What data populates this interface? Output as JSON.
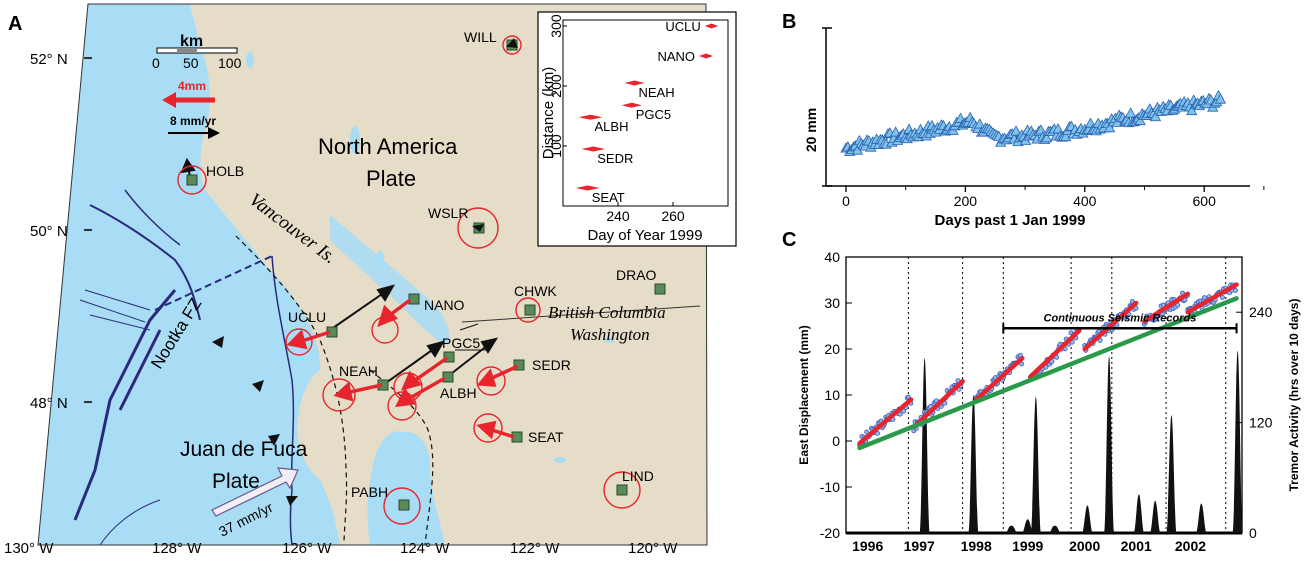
{
  "panels": {
    "a": "A",
    "b": "B",
    "c": "C"
  },
  "colors": {
    "ocean": "#a9dcf5",
    "land": "#e6ddc8",
    "vector": "#e8242c",
    "site": "#5a8a5a",
    "gps": "#3c6fc4",
    "trend": "#2a9a4a"
  },
  "map": {
    "lat_labels": [
      "52° N",
      "50° N",
      "48° N"
    ],
    "lon_labels": [
      "130° W",
      "128° W",
      "126° W",
      "124° W",
      "122° W",
      "120° W"
    ],
    "scale": {
      "title": "km",
      "ticks": [
        "0",
        "50",
        "100"
      ]
    },
    "legend_red": "4mm",
    "legend_black": "8 mm/yr",
    "regions": {
      "na1": "North America",
      "na2": "Plate",
      "jdf1": "Juan de Fuca",
      "jdf2": "Plate",
      "vancouver": "Vancouver Is.",
      "nootka": "Nootka FZ",
      "bc": "British Columbia",
      "wa": "Washington"
    },
    "plate_rate": "37 mm/yr",
    "stations": {
      "will": "WILL",
      "holb": "HOLB",
      "wslr": "WSLR",
      "drao": "DRAO",
      "chwk": "CHWK",
      "nano": "NANO",
      "uclu": "UCLU",
      "pgc5": "PGC5",
      "neah": "NEAH",
      "sedr": "SEDR",
      "albh": "ALBH",
      "seat": "SEAT",
      "pabh": "PABH",
      "lind": "LIND"
    }
  },
  "chart_data": [
    {
      "panel": "A inset",
      "type": "scatter",
      "xlabel": "Day of Year 1999",
      "ylabel": "Distance (km)",
      "xlim": [
        220,
        280
      ],
      "ylim": [
        0,
        310
      ],
      "xticks": [
        240,
        260
      ],
      "yticks": [
        100,
        200,
        300
      ],
      "series": [
        {
          "name": "UCLU",
          "x": 274,
          "y": 300
        },
        {
          "name": "NANO",
          "x": 272,
          "y": 250
        },
        {
          "name": "NEAH",
          "x": 246,
          "y": 205
        },
        {
          "name": "PGC5",
          "x": 245,
          "y": 168
        },
        {
          "name": "ALBH",
          "x": 230,
          "y": 148
        },
        {
          "name": "SEDR",
          "x": 231,
          "y": 95
        },
        {
          "name": "SEAT",
          "x": 229,
          "y": 30
        }
      ]
    },
    {
      "panel": "B",
      "type": "scatter",
      "xlabel": "Days past 1 Jan 1999",
      "ylabel": "20 mm",
      "xticks": [
        0,
        200,
        400,
        600
      ],
      "xlim": [
        -20,
        720
      ],
      "scale_bar_mm": 20,
      "trend_mm": [
        [
          0,
          0
        ],
        [
          60,
          3
        ],
        [
          130,
          6
        ],
        [
          190,
          9
        ],
        [
          210,
          10
        ],
        [
          230,
          7
        ],
        [
          245,
          4
        ],
        [
          300,
          4.5
        ],
        [
          350,
          5.5
        ],
        [
          400,
          7.5
        ],
        [
          450,
          10
        ],
        [
          500,
          12.5
        ],
        [
          550,
          14.5
        ],
        [
          600,
          16.5
        ],
        [
          625,
          17.5
        ]
      ]
    },
    {
      "panel": "C",
      "type": "line",
      "xlabel": "",
      "ylabel": "East Displacement (mm)",
      "y2label": "Tremor Activity (hrs over 10 days)",
      "xlim": [
        1995.7,
        2003.0
      ],
      "ylim": [
        -20,
        40
      ],
      "yticks": [
        -20,
        -10,
        0,
        10,
        20,
        30,
        40
      ],
      "y2ticks": [
        0,
        120,
        240
      ],
      "y2lim": [
        0,
        300
      ],
      "year_labels": [
        "1996",
        "1997",
        "1998",
        "1999",
        "2000",
        "2001",
        "2002"
      ],
      "year_label_x": [
        1996.1,
        1997.05,
        1998.1,
        1999.05,
        2000.1,
        2001.05,
        2002.05
      ],
      "event_lines": [
        1996.85,
        1997.85,
        1998.6,
        1999.85,
        2000.6,
        2001.6,
        2002.7
      ],
      "annotation": "Continuous Seismic Records",
      "annotation_range": [
        1998.6,
        2002.9
      ],
      "series": [
        {
          "name": "",
          "color": "#e8242c",
          "segments": [
            [
              [
                1995.95,
                -0.5
              ],
              [
                1996.9,
                9
              ]
            ],
            [
              [
                1996.95,
                3
              ],
              [
                1997.85,
                13
              ]
            ],
            [
              [
                1998.1,
                9
              ],
              [
                1998.95,
                18
              ]
            ],
            [
              [
                1999.1,
                14
              ],
              [
                2000.0,
                24
              ]
            ],
            [
              [
                2000.1,
                20
              ],
              [
                2001.05,
                30
              ]
            ],
            [
              [
                2001.2,
                26
              ],
              [
                2002.0,
                32
              ]
            ],
            [
              [
                2002.0,
                28
              ],
              [
                2002.9,
                34
              ]
            ]
          ]
        },
        {
          "name": "",
          "color": "#2a9a4a",
          "segments": [
            [
              [
                1995.95,
                -1.5
              ],
              [
                2002.9,
                31
              ]
            ]
          ]
        }
      ],
      "tremor": [
        {
          "t": 1997.15,
          "hrs": 190
        },
        {
          "t": 1998.05,
          "hrs": 150
        },
        {
          "t": 1998.75,
          "hrs": 8
        },
        {
          "t": 1999.05,
          "hrs": 15
        },
        {
          "t": 1999.2,
          "hrs": 148
        },
        {
          "t": 1999.55,
          "hrs": 8
        },
        {
          "t": 2000.15,
          "hrs": 30
        },
        {
          "t": 2000.55,
          "hrs": 192
        },
        {
          "t": 2001.1,
          "hrs": 42
        },
        {
          "t": 2001.4,
          "hrs": 35
        },
        {
          "t": 2001.7,
          "hrs": 128
        },
        {
          "t": 2002.25,
          "hrs": 32
        },
        {
          "t": 2002.92,
          "hrs": 198
        }
      ]
    }
  ]
}
